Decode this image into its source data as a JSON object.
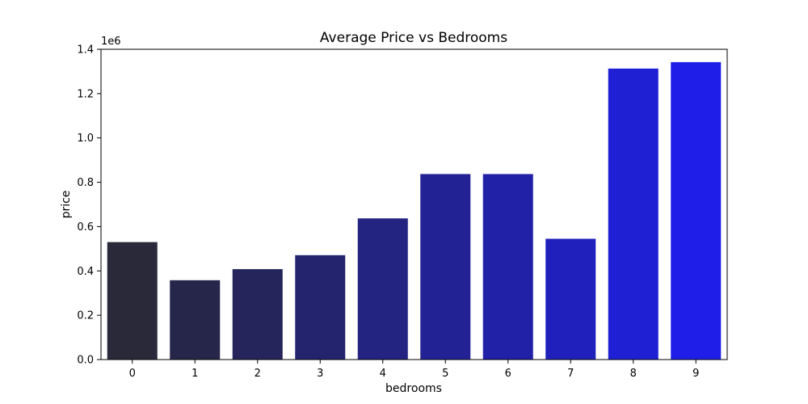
{
  "chart_data": {
    "type": "bar",
    "title": "Average Price vs Bedrooms",
    "xlabel": "bedrooms",
    "ylabel": "price",
    "y_offset_label": "1e6",
    "categories": [
      "0",
      "1",
      "2",
      "3",
      "4",
      "5",
      "6",
      "7",
      "8",
      "9"
    ],
    "values": [
      530000,
      358000,
      408000,
      471000,
      637000,
      837000,
      837000,
      545000,
      1313000,
      1342000
    ],
    "ylim": [
      0,
      1400000
    ],
    "yticks": [
      0,
      200000,
      400000,
      600000,
      800000,
      1000000,
      1200000,
      1400000
    ],
    "ytick_labels": [
      "0.0",
      "0.2",
      "0.4",
      "0.6",
      "0.8",
      "1.0",
      "1.2",
      "1.4"
    ],
    "grid": false,
    "bar_colors": [
      "#29293a",
      "#26264a",
      "#25255c",
      "#24246e",
      "#232381",
      "#222294",
      "#2121a8",
      "#2020bd",
      "#1f1fd3",
      "#1e1ee8"
    ]
  }
}
